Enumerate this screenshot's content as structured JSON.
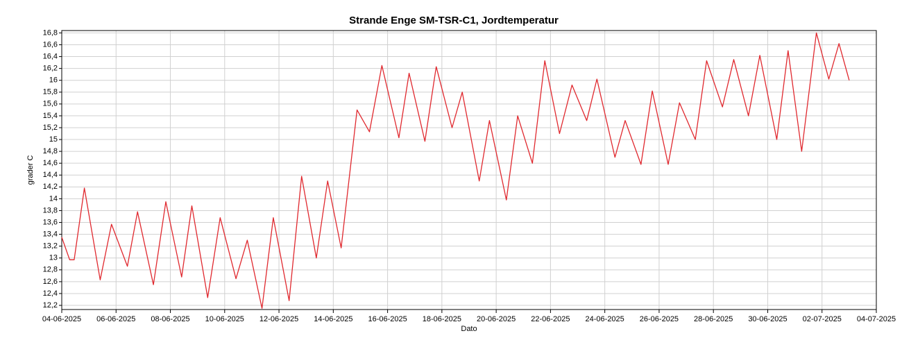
{
  "chart_data": {
    "type": "line",
    "title": "Strande Enge SM-TSR-C1, Jordtemperatur",
    "xlabel": "Dato",
    "ylabel": "grader C",
    "grid": true,
    "xlim": [
      "2025-06-04T00:00",
      "2025-07-04T00:00"
    ],
    "ylim": [
      12.13,
      16.84
    ],
    "xticks": [
      {
        "value": "2025-06-04T00:00",
        "label": "04-06-2025"
      },
      {
        "value": "2025-06-06T00:00",
        "label": "06-06-2025"
      },
      {
        "value": "2025-06-08T00:00",
        "label": "08-06-2025"
      },
      {
        "value": "2025-06-10T00:00",
        "label": "10-06-2025"
      },
      {
        "value": "2025-06-12T00:00",
        "label": "12-06-2025"
      },
      {
        "value": "2025-06-14T00:00",
        "label": "14-06-2025"
      },
      {
        "value": "2025-06-16T00:00",
        "label": "16-06-2025"
      },
      {
        "value": "2025-06-18T00:00",
        "label": "18-06-2025"
      },
      {
        "value": "2025-06-20T00:00",
        "label": "20-06-2025"
      },
      {
        "value": "2025-06-22T00:00",
        "label": "22-06-2025"
      },
      {
        "value": "2025-06-24T00:00",
        "label": "24-06-2025"
      },
      {
        "value": "2025-06-26T00:00",
        "label": "26-06-2025"
      },
      {
        "value": "2025-06-28T00:00",
        "label": "28-06-2025"
      },
      {
        "value": "2025-06-30T00:00",
        "label": "30-06-2025"
      },
      {
        "value": "2025-07-02T00:00",
        "label": "02-07-2025"
      },
      {
        "value": "2025-07-04T00:00",
        "label": "04-07-2025"
      }
    ],
    "yticks": [
      {
        "value": 12.2,
        "label": "12,2"
      },
      {
        "value": 12.4,
        "label": "12,4"
      },
      {
        "value": 12.6,
        "label": "12,6"
      },
      {
        "value": 12.8,
        "label": "12,8"
      },
      13,
      {
        "value": 13.2,
        "label": "13,2"
      },
      {
        "value": 13.4,
        "label": "13,4"
      },
      {
        "value": 13.6,
        "label": "13,6"
      },
      {
        "value": 13.8,
        "label": "13,8"
      },
      14,
      {
        "value": 14.2,
        "label": "14,2"
      },
      {
        "value": 14.4,
        "label": "14,4"
      },
      {
        "value": 14.6,
        "label": "14,6"
      },
      {
        "value": 14.8,
        "label": "14,8"
      },
      15,
      {
        "value": 15.2,
        "label": "15,2"
      },
      {
        "value": 15.4,
        "label": "15,4"
      },
      {
        "value": 15.6,
        "label": "15,6"
      },
      {
        "value": 15.8,
        "label": "15,8"
      },
      16,
      {
        "value": 16.2,
        "label": "16,2"
      },
      {
        "value": 16.4,
        "label": "16,4"
      },
      {
        "value": 16.6,
        "label": "16,6"
      },
      {
        "value": 16.8,
        "label": "16,8"
      }
    ],
    "x": [
      "2025-06-04T00:00",
      "2025-06-04T07:00",
      "2025-06-04T11:00",
      "2025-06-04T20:00",
      "2025-06-05T10:00",
      "2025-06-05T20:00",
      "2025-06-06T10:00",
      "2025-06-06T19:00",
      "2025-06-07T09:00",
      "2025-06-07T20:00",
      "2025-06-08T10:00",
      "2025-06-08T19:00",
      "2025-06-09T09:00",
      "2025-06-09T20:00",
      "2025-06-10T10:00",
      "2025-06-10T20:00",
      "2025-06-11T09:00",
      "2025-06-11T19:00",
      "2025-06-12T09:00",
      "2025-06-12T20:00",
      "2025-06-13T09:00",
      "2025-06-13T19:00",
      "2025-06-14T07:00",
      "2025-06-14T21:00",
      "2025-06-15T08:00",
      "2025-06-15T19:00",
      "2025-06-16T10:00",
      "2025-06-16T19:00",
      "2025-06-17T09:00",
      "2025-06-17T19:00",
      "2025-06-18T09:00",
      "2025-06-18T18:00",
      "2025-06-19T09:00",
      "2025-06-19T18:00",
      "2025-06-20T09:00",
      "2025-06-20T19:00",
      "2025-06-21T08:00",
      "2025-06-21T19:00",
      "2025-06-22T08:00",
      "2025-06-22T19:00",
      "2025-06-23T08:00",
      "2025-06-23T17:00",
      "2025-06-24T09:00",
      "2025-06-24T18:00",
      "2025-06-25T08:00",
      "2025-06-25T18:00",
      "2025-06-26T08:00",
      "2025-06-26T18:00",
      "2025-06-27T08:00",
      "2025-06-27T18:00",
      "2025-06-28T08:00",
      "2025-06-28T18:00",
      "2025-06-29T07:00",
      "2025-06-29T17:00",
      "2025-06-30T08:00",
      "2025-06-30T18:00",
      "2025-07-01T06:00",
      "2025-07-01T19:00",
      "2025-07-02T06:00",
      "2025-07-02T15:00",
      "2025-07-03T00:00"
    ],
    "series": [
      {
        "name": "Jordtemperatur",
        "color": "#e0282e",
        "values": [
          13.35,
          12.97,
          12.97,
          14.18,
          12.63,
          13.57,
          12.86,
          13.78,
          12.55,
          13.95,
          12.68,
          13.88,
          12.33,
          13.68,
          12.65,
          13.3,
          12.15,
          13.68,
          12.28,
          14.38,
          13.0,
          14.3,
          13.17,
          15.5,
          15.13,
          16.25,
          15.03,
          16.12,
          14.97,
          16.23,
          15.2,
          15.8,
          14.3,
          15.32,
          13.98,
          15.4,
          14.6,
          16.33,
          15.1,
          15.92,
          15.32,
          16.02,
          14.7,
          15.32,
          14.58,
          15.82,
          14.58,
          15.62,
          15.0,
          16.33,
          15.55,
          16.35,
          15.4,
          16.42,
          15.0,
          16.5,
          14.8,
          16.8,
          16.02,
          16.62,
          16.0
        ]
      }
    ]
  }
}
